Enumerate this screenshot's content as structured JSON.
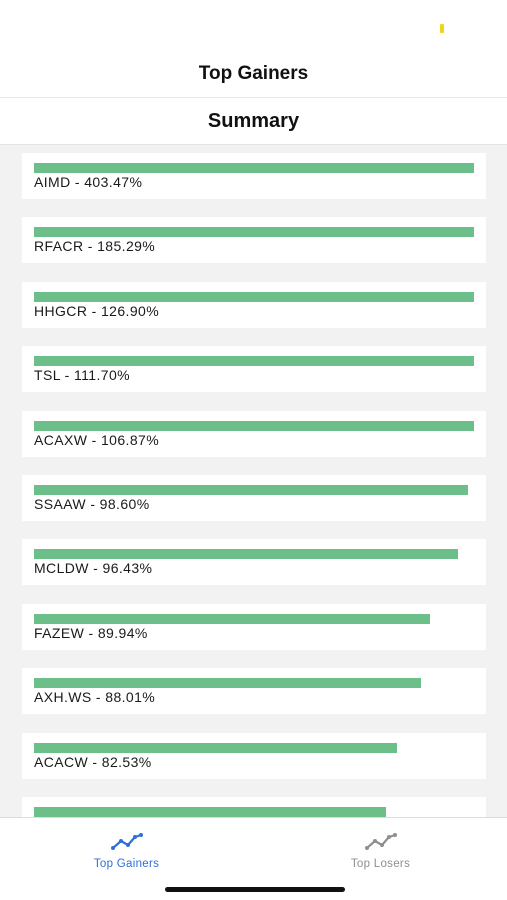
{
  "nav": {
    "title": "Top Gainers"
  },
  "section": {
    "title": "Summary"
  },
  "items": [
    {
      "label": "AIMD - 403.47%",
      "fill": 1.0
    },
    {
      "label": "RFACR - 185.29%",
      "fill": 1.0
    },
    {
      "label": "HHGCR - 126.90%",
      "fill": 1.0
    },
    {
      "label": "TSL - 111.70%",
      "fill": 1.0
    },
    {
      "label": "ACAXW - 106.87%",
      "fill": 1.0
    },
    {
      "label": "SSAAW - 98.60%",
      "fill": 0.986
    },
    {
      "label": "MCLDW - 96.43%",
      "fill": 0.9643
    },
    {
      "label": "FAZEW - 89.94%",
      "fill": 0.8994
    },
    {
      "label": "AXH.WS - 88.01%",
      "fill": 0.8801
    },
    {
      "label": "ACACW - 82.53%",
      "fill": 0.8253
    },
    {
      "label": "",
      "fill": 0.8
    }
  ],
  "tabs": [
    {
      "label": "Top Gainers",
      "icon": "trend-line-icon",
      "active": true,
      "color": "#2f6fd6"
    },
    {
      "label": "Top Losers",
      "icon": "trend-line-icon",
      "active": false,
      "color": "#8e8e93"
    }
  ],
  "colors": {
    "bar": "#6dbf89",
    "accent": "#2f6fd6",
    "status_dot": "#f2d21b"
  }
}
